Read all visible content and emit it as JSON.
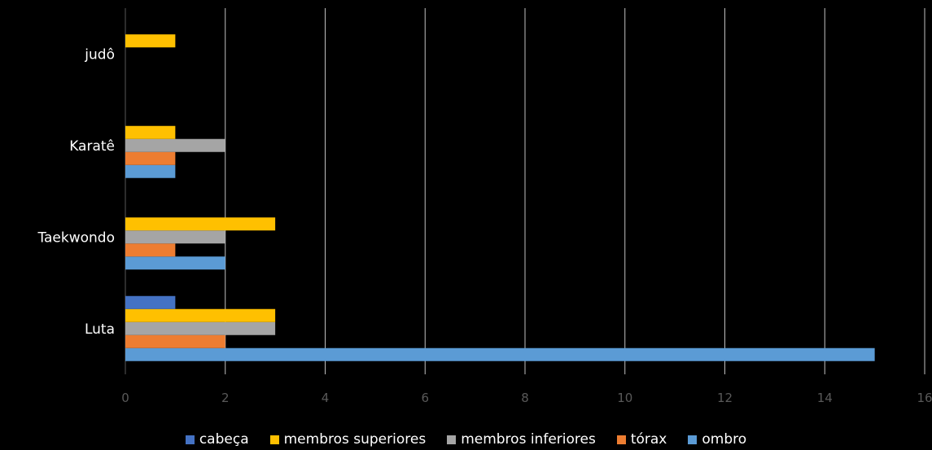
{
  "chart_data": {
    "type": "bar",
    "orientation": "horizontal",
    "categories": [
      "Luta",
      "Taekwondo",
      "Karatê",
      "judô"
    ],
    "series": [
      {
        "name": "ombro",
        "color": "#5B9BD5",
        "values": [
          15,
          2,
          1,
          0
        ]
      },
      {
        "name": "tórax",
        "color": "#ED7D31",
        "values": [
          2,
          1,
          1,
          0
        ]
      },
      {
        "name": "membros inferiores",
        "color": "#A5A5A5",
        "values": [
          3,
          2,
          2,
          0
        ]
      },
      {
        "name": "membros superiores",
        "color": "#FFC000",
        "values": [
          3,
          3,
          1,
          1
        ]
      },
      {
        "name": "cabeça",
        "color": "#4472C4",
        "values": [
          1,
          0,
          0,
          0
        ]
      }
    ],
    "xlim": [
      0,
      16
    ],
    "xticks": [
      0,
      2,
      4,
      6,
      8,
      10,
      12,
      14,
      16
    ],
    "grid": "vertical",
    "legend_position": "bottom",
    "legend_order": [
      "cabeça",
      "membros superiores",
      "membros inferiores",
      "tórax",
      "ombro"
    ]
  }
}
